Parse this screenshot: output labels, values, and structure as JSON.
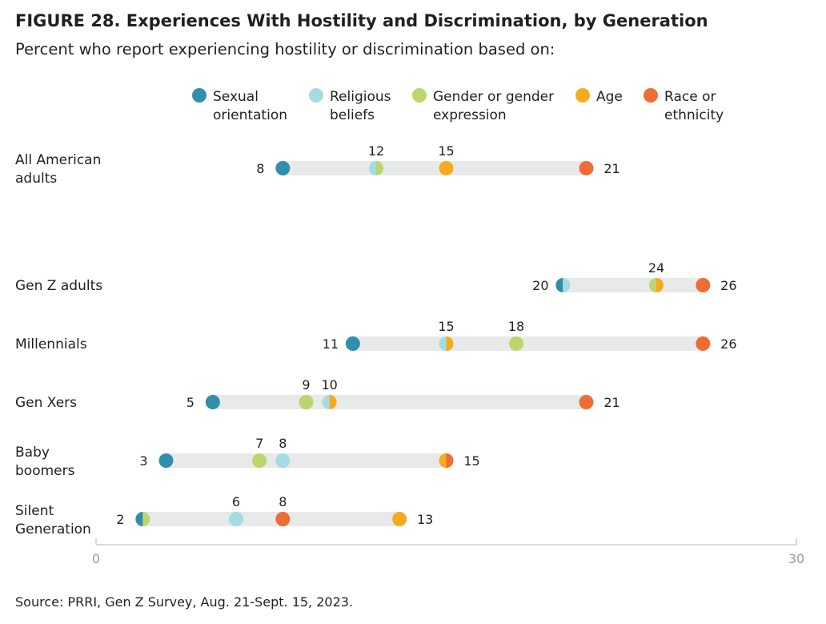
{
  "header": {
    "title": "FIGURE 28. Experiences With Hostility and Discrimination, by Generation",
    "subtitle": "Percent who report experiencing hostility or discrimination based on:"
  },
  "footer": {
    "source": "Source: PRRI, Gen Z Survey, Aug. 21-Sept. 15, 2023."
  },
  "chart_data": {
    "type": "dot-range",
    "title": "FIGURE 28. Experiences With Hostility and Discrimination, by Generation",
    "subtitle": "Percent who report experiencing hostility or discrimination based on:",
    "xlim": [
      0,
      30
    ],
    "x_ticks": [
      "0",
      "30"
    ],
    "legend_position": "top",
    "series": [
      {
        "key": "sexual",
        "name": "Sexual orientation",
        "lines": [
          "Sexual",
          "orientation"
        ],
        "color": "#2f8fac"
      },
      {
        "key": "religious",
        "name": "Religious beliefs",
        "lines": [
          "Religious",
          "beliefs"
        ],
        "color": "#a5dbe3"
      },
      {
        "key": "gender",
        "name": "Gender or gender expression",
        "lines": [
          "Gender or gender",
          "expression"
        ],
        "color": "#bcd66d"
      },
      {
        "key": "age",
        "name": "Age",
        "lines": [
          "Age"
        ],
        "color": "#f6ab1e"
      },
      {
        "key": "race",
        "name": "Race or ethnicity",
        "lines": [
          "Race or",
          "ethnicity"
        ],
        "color": "#ef6c35"
      }
    ],
    "categories": [
      {
        "label": [
          "All American",
          "adults"
        ],
        "values": {
          "sexual": 8,
          "religious": 12,
          "gender": 12,
          "age": 15,
          "race": 21
        },
        "labels": [
          {
            "text": "8",
            "side": "left"
          },
          {
            "text": "12",
            "side": "above",
            "at": 12
          },
          {
            "text": "15",
            "side": "above",
            "at": 15
          },
          {
            "text": "21",
            "side": "right"
          }
        ]
      },
      {
        "label": [
          "Gen Z adults"
        ],
        "values": {
          "sexual": 20,
          "religious": 20,
          "gender": 24,
          "age": 24,
          "race": 26
        },
        "labels": [
          {
            "text": "20",
            "side": "left"
          },
          {
            "text": "24",
            "side": "above",
            "at": 24
          },
          {
            "text": "26",
            "side": "right"
          }
        ]
      },
      {
        "label": [
          "Millennials"
        ],
        "values": {
          "sexual": 11,
          "religious": 15,
          "gender": 18,
          "age": 15,
          "race": 26
        },
        "labels": [
          {
            "text": "11",
            "side": "left"
          },
          {
            "text": "15",
            "side": "above",
            "at": 15
          },
          {
            "text": "18",
            "side": "above",
            "at": 18
          },
          {
            "text": "26",
            "side": "right"
          }
        ]
      },
      {
        "label": [
          "Gen Xers"
        ],
        "values": {
          "sexual": 5,
          "religious": 10,
          "gender": 9,
          "age": 10,
          "race": 21
        },
        "labels": [
          {
            "text": "5",
            "side": "left"
          },
          {
            "text": "9",
            "side": "above",
            "at": 9
          },
          {
            "text": "10",
            "side": "above",
            "at": 10
          },
          {
            "text": "21",
            "side": "right"
          }
        ]
      },
      {
        "label": [
          "Baby",
          "boomers"
        ],
        "values": {
          "sexual": 3,
          "religious": 8,
          "gender": 7,
          "age": 15,
          "race": 15
        },
        "labels": [
          {
            "text": "3",
            "side": "left"
          },
          {
            "text": "7",
            "side": "above",
            "at": 7
          },
          {
            "text": "8",
            "side": "above",
            "at": 8
          },
          {
            "text": "15",
            "side": "right"
          }
        ]
      },
      {
        "label": [
          "Silent",
          "Generation"
        ],
        "values": {
          "sexual": 2,
          "religious": 6,
          "gender": 2,
          "age": 13,
          "race": 8
        },
        "labels": [
          {
            "text": "2",
            "side": "left"
          },
          {
            "text": "6",
            "side": "above",
            "at": 6
          },
          {
            "text": "8",
            "side": "above",
            "at": 8
          },
          {
            "text": "13",
            "side": "right"
          }
        ]
      }
    ]
  }
}
